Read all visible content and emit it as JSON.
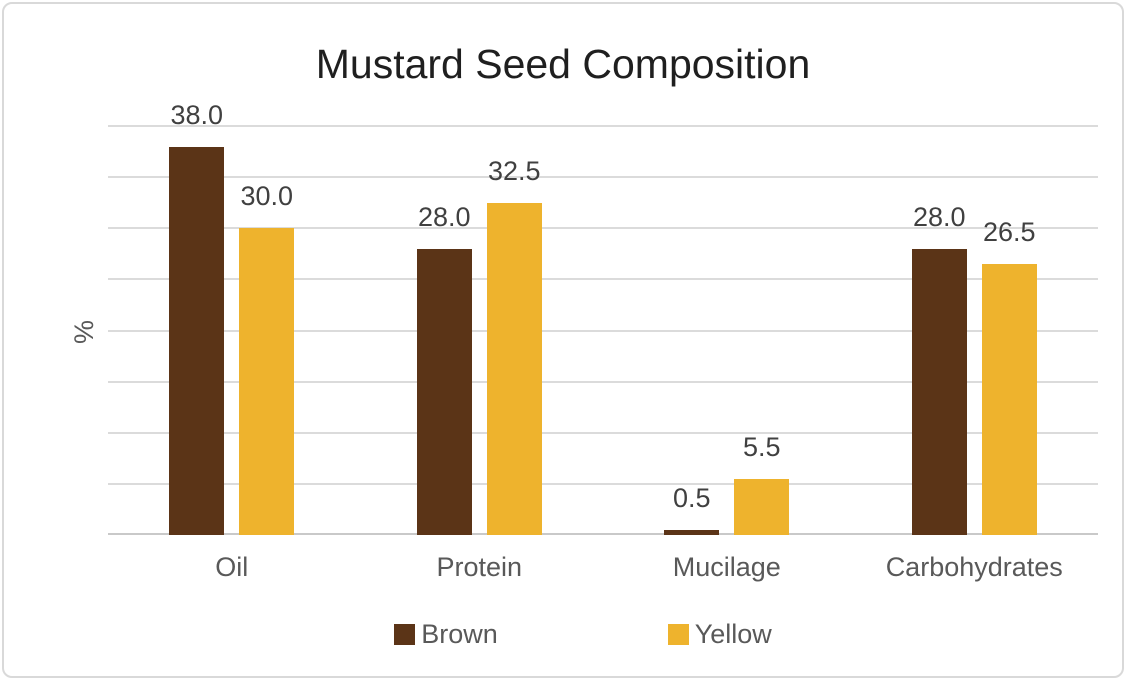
{
  "chart_data": {
    "type": "bar",
    "title": "Mustard Seed Composition",
    "xlabel": "",
    "ylabel": "%",
    "categories": [
      "Oil",
      "Protein",
      "Mucilage",
      "Carbohydrates"
    ],
    "series": [
      {
        "name": "Brown",
        "color": "#5B3417",
        "values": [
          38.0,
          28.0,
          0.5,
          28.0
        ]
      },
      {
        "name": "Yellow",
        "color": "#EEB32D",
        "values": [
          30.0,
          32.5,
          5.5,
          26.5
        ]
      }
    ],
    "data_labels": {
      "Brown": [
        "38.0",
        "28.0",
        "0.5",
        "28.0"
      ],
      "Yellow": [
        "30.0",
        "32.5",
        "5.5",
        "26.5"
      ]
    },
    "ylim": [
      0,
      40
    ],
    "grid_step": 5,
    "grid": true,
    "y_tick_labels_visible": false,
    "legend_position": "bottom"
  },
  "colors": {
    "brown_series": "#5B3417",
    "yellow_series": "#EEB32D",
    "gridline": "#DBDBDB",
    "axis_line": "#C9C9C9",
    "title_text": "#1F1F1F",
    "value_label_text": "#404040",
    "axis_text": "#595959",
    "frame_border": "#D9D9D9",
    "background": "#FFFFFF"
  }
}
